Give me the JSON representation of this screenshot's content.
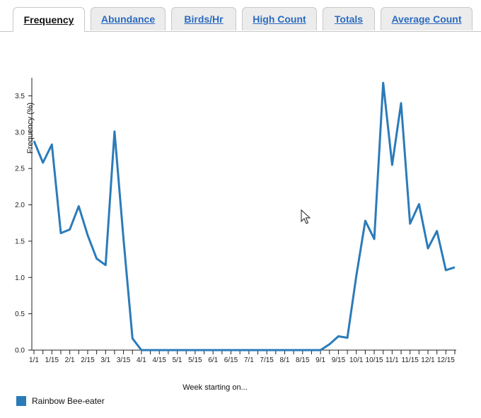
{
  "tabs": [
    {
      "label": "Frequency",
      "active": true
    },
    {
      "label": "Abundance",
      "active": false
    },
    {
      "label": "Birds/Hr",
      "active": false
    },
    {
      "label": "High Count",
      "active": false
    },
    {
      "label": "Totals",
      "active": false
    },
    {
      "label": "Average Count",
      "active": false
    }
  ],
  "colors": {
    "series": "#2b7bb9"
  },
  "chart_data": {
    "type": "line",
    "xlabel": "Week starting on...",
    "ylabel": "Frequency (%)",
    "ylim": [
      0,
      3.7
    ],
    "yticks": [
      "0.0",
      "0.5",
      "1.0",
      "1.5",
      "2.0",
      "2.5",
      "3.0",
      "3.5"
    ],
    "xtick_labels": [
      "1/1",
      "1/15",
      "2/1",
      "2/15",
      "3/1",
      "3/15",
      "4/1",
      "4/15",
      "5/1",
      "5/15",
      "6/1",
      "6/15",
      "7/1",
      "7/15",
      "8/1",
      "8/15",
      "9/1",
      "9/15",
      "10/1",
      "10/15",
      "11/1",
      "11/15",
      "12/1",
      "12/15"
    ],
    "grid": false,
    "legend_position": "bottom-left",
    "series": [
      {
        "name": "Rainbow Bee-eater",
        "values": [
          2.88,
          2.58,
          2.83,
          1.61,
          1.66,
          1.98,
          1.58,
          1.26,
          1.17,
          3.01,
          1.53,
          0.16,
          0,
          0,
          0,
          0,
          0,
          0,
          0,
          0,
          0,
          0,
          0,
          0,
          0,
          0,
          0,
          0,
          0,
          0,
          0,
          0,
          0,
          0.08,
          0.19,
          0.17,
          1.02,
          1.78,
          1.53,
          3.68,
          2.55,
          3.4,
          1.74,
          2.01,
          1.4,
          1.64,
          1.1,
          1.14
        ]
      }
    ]
  }
}
